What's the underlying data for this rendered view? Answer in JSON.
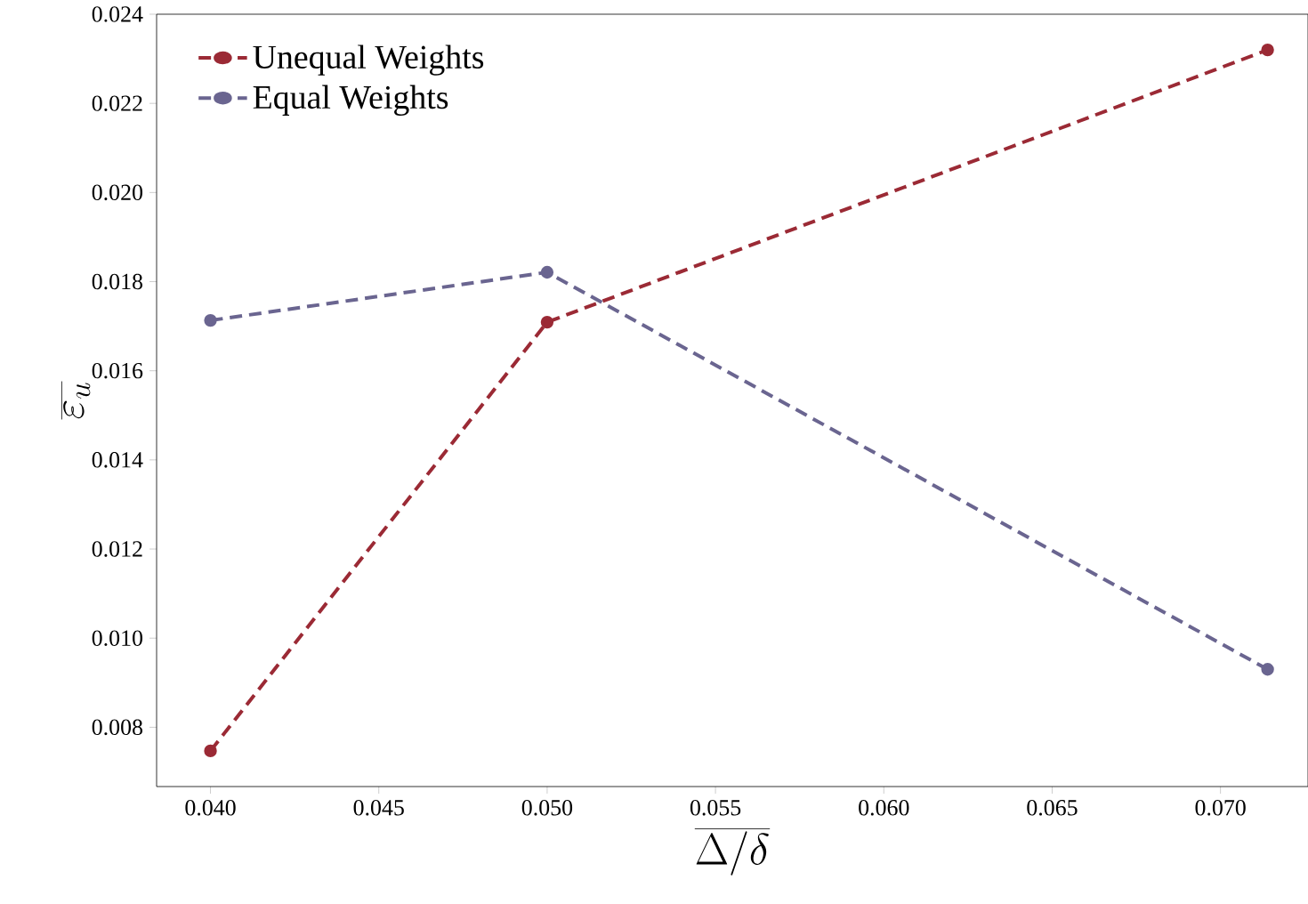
{
  "chart_data": {
    "type": "line",
    "xlabel": "\\overline{\\Delta/\\delta}",
    "ylabel": "\\overline{\\varepsilon_u}",
    "x": [
      0.04,
      0.05,
      0.0714
    ],
    "series": [
      {
        "name": "Unequal Weights",
        "color": "#9b2a35",
        "values": [
          0.00747,
          0.01709,
          0.0232
        ]
      },
      {
        "name": "Equal Weights",
        "color": "#6a6590",
        "values": [
          0.01713,
          0.01821,
          0.0093
        ]
      }
    ],
    "xlim": [
      0.0384,
      0.0726
    ],
    "ylim": [
      0.00667,
      0.024
    ],
    "xticks": [
      {
        "value": 0.04,
        "label": "0.040"
      },
      {
        "value": 0.045,
        "label": "0.045"
      },
      {
        "value": 0.05,
        "label": "0.050"
      },
      {
        "value": 0.055,
        "label": "0.055"
      },
      {
        "value": 0.06,
        "label": "0.060"
      },
      {
        "value": 0.065,
        "label": "0.065"
      },
      {
        "value": 0.07,
        "label": "0.070"
      }
    ],
    "yticks": [
      {
        "value": 0.008,
        "label": "0.008"
      },
      {
        "value": 0.01,
        "label": "0.010"
      },
      {
        "value": 0.012,
        "label": "0.012"
      },
      {
        "value": 0.014,
        "label": "0.014"
      },
      {
        "value": 0.016,
        "label": "0.016"
      },
      {
        "value": 0.018,
        "label": "0.018"
      },
      {
        "value": 0.02,
        "label": "0.020"
      },
      {
        "value": 0.022,
        "label": "0.022"
      },
      {
        "value": 0.024,
        "label": "0.024"
      }
    ],
    "grid": false,
    "legend": "top left",
    "marker": "circle",
    "line_style": "dashed"
  }
}
